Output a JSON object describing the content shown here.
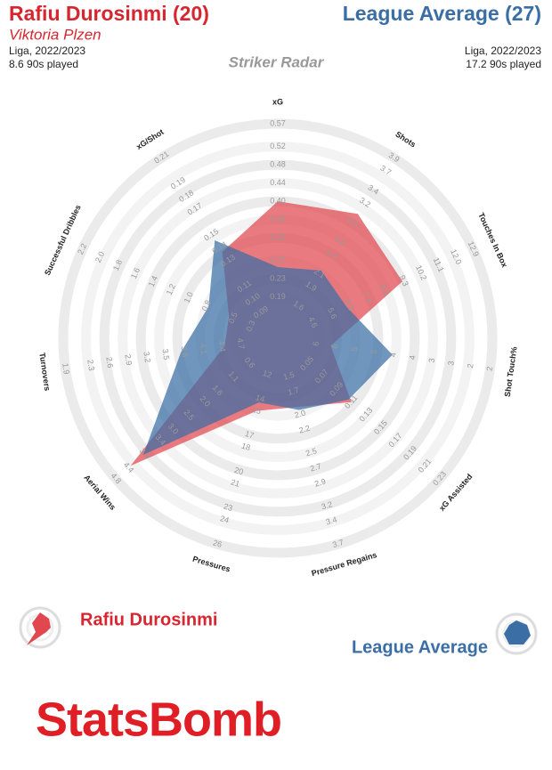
{
  "header": {
    "left": {
      "title": "Rafiu Durosinmi (20)",
      "subtitle": "Viktoria Plzen",
      "competition": "Liga, 2022/2023",
      "minutes": "8.6 90s played"
    },
    "right": {
      "title": "League Average (27)",
      "competition": "Liga, 2022/2023",
      "minutes": "17.2 90s played"
    }
  },
  "chart_data": {
    "type": "radar",
    "title": "Striker Radar",
    "axes": [
      {
        "name": "xG",
        "lim": [
          0.1,
          0.57
        ],
        "ticks": [
          0.19,
          0.23,
          0.27,
          0.32,
          0.36,
          {
            "value": 0.4,
            "label": "0.40"
          },
          0.44,
          0.48,
          0.52,
          0.57
        ]
      },
      {
        "name": "Shots",
        "lim": [
          1.1,
          3.9
        ],
        "ticks": [
          1.6,
          1.9,
          2.1,
          2.4,
          2.6,
          2.9,
          3.2,
          3.4,
          3.7,
          3.9
        ]
      },
      {
        "name": "Touches In Box",
        "lim": [
          2.8,
          12.9
        ],
        "ticks": [
          4.6,
          5.6,
          6.5,
          7.4,
          8.3,
          9.3,
          10.2,
          11.1,
          {
            "value": 12,
            "label": "12.0"
          },
          12.9
        ]
      },
      {
        "name": "Shot Touch%",
        "lim": [
          7.4,
          1.9
        ],
        "ticks": [
          {
            "value": 6.4,
            "label": "6"
          },
          {
            "value": 5.9,
            "label": "6"
          },
          {
            "value": 5.4,
            "label": "5"
          },
          {
            "value": 4.9,
            "label": "5"
          },
          {
            "value": 4.4,
            "label": "4"
          },
          {
            "value": 3.9,
            "label": "4"
          },
          {
            "value": 3.4,
            "label": "3"
          },
          {
            "value": 2.9,
            "label": "3"
          },
          {
            "value": 2.4,
            "label": "2"
          },
          {
            "value": 1.9,
            "label": "2"
          }
        ]
      },
      {
        "name": "xG Assisted",
        "lim": [
          0.01,
          0.23
        ],
        "ticks": [
          0.05,
          0.07,
          0.09,
          0.11,
          0.13,
          0.15,
          0.17,
          0.19,
          0.21,
          0.23
        ]
      },
      {
        "name": "Pressure Regains",
        "lim": [
          1.0,
          3.7
        ],
        "ticks": [
          1.5,
          1.7,
          {
            "value": 2,
            "label": "2.0"
          },
          2.2,
          2.5,
          2.7,
          2.9,
          3.2,
          3.4,
          3.7
        ]
      },
      {
        "name": "Pressures",
        "lim": [
          9,
          26
        ],
        "ticks": [
          12,
          14,
          15,
          17,
          18,
          20,
          21,
          23,
          24,
          26
        ]
      },
      {
        "name": "Aerial Wins",
        "lim": [
          -0.3,
          4.8
        ],
        "ticks": [
          0.6,
          1.1,
          1.6,
          {
            "value": 2,
            "label": "2.0"
          },
          2.5,
          {
            "value": 3,
            "label": "3.0"
          },
          3.4,
          3.9,
          4.4,
          4.8
        ]
      },
      {
        "name": "Turnovers",
        "lim": [
          5.3,
          1.9
        ],
        "ticks": [
          4.7,
          4.4,
          4.1,
          3.8,
          3.5,
          3.2,
          2.9,
          2.6,
          2.3,
          1.9
        ]
      },
      {
        "name": "Successful Dribbles",
        "lim": [
          0,
          2.2
        ],
        "ticks": [
          0.3,
          0.5,
          0.8,
          {
            "value": 1,
            "label": "1.0"
          },
          1.2,
          1.4,
          1.6,
          1.8,
          {
            "value": 2,
            "label": "2.0"
          },
          2.2
        ]
      },
      {
        "name": "xG/Shot",
        "lim": [
          0.07,
          0.21
        ],
        "ticks": [
          0.09,
          {
            "value": 0.1,
            "label": "0.10"
          },
          0.11,
          0.13,
          0.14,
          0.15,
          0.17,
          0.18,
          0.19,
          0.21
        ]
      }
    ],
    "series": [
      {
        "name": "Rafiu Durosinmi",
        "color": "#e0474f",
        "values": [
          0.4,
          3.03,
          9.25,
          6.03,
          0.11,
          1.9,
          15,
          4.33,
          4.45,
          0.55,
          0.137
        ]
      },
      {
        "name": "League Average",
        "color": "#3a6ea5",
        "values": [
          0.256,
          2.15,
          6.36,
          4.43,
          0.106,
          1.94,
          14.3,
          3.93,
          3.75,
          0.78,
          0.146
        ]
      }
    ]
  },
  "branding": "StatsBomb"
}
